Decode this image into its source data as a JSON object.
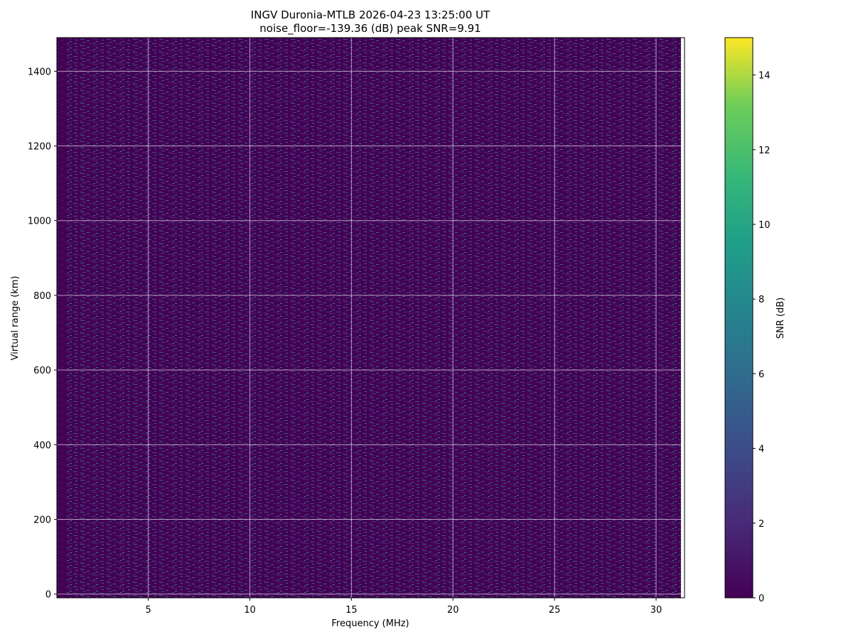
{
  "chart_data": {
    "type": "heatmap",
    "title": "INGV Duronia-MTLB 2026-04-23 13:25:00  UT",
    "subtitle": "noise_floor=-139.36 (dB) peak SNR=9.91",
    "x_label": "Frequency (MHz)",
    "y_label": "Virtual range (km)",
    "xlim": [
      0.5,
      31.4
    ],
    "xticks": [
      5,
      10,
      15,
      20,
      25,
      30
    ],
    "ylim": [
      -10,
      1490
    ],
    "yticks": [
      0,
      200,
      400,
      600,
      800,
      1000,
      1200,
      1400
    ],
    "grid": true,
    "colorbar": {
      "label": "SNR (dB)",
      "lim": [
        0,
        15
      ],
      "ticks": [
        0,
        2,
        4,
        6,
        8,
        10,
        12,
        14
      ]
    }
  }
}
